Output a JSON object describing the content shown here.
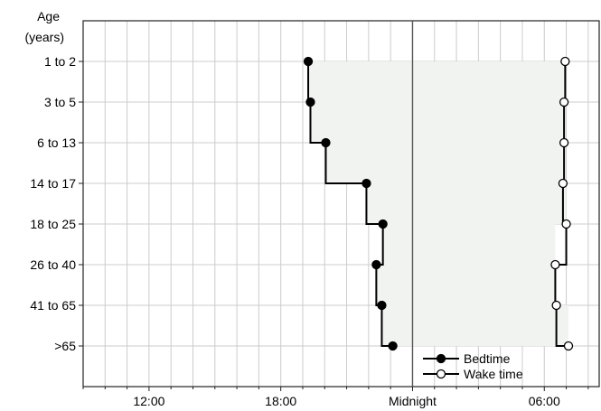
{
  "chart_data": {
    "type": "line",
    "title": "",
    "xlabel": "",
    "ylabel_lines": [
      "Age",
      "(years)"
    ],
    "categories": [
      "1 to 2",
      "3 to 5",
      "6 to 13",
      "14 to 17",
      "18 to 25",
      "26 to 40",
      "41 to 65",
      ">65"
    ],
    "x_unit": "hours since 09:00",
    "xlim": [
      0,
      23.5
    ],
    "x_ticks": [
      {
        "value": 3,
        "label": "12:00"
      },
      {
        "value": 9,
        "label": "18:00"
      },
      {
        "value": 15,
        "label": "Midnight"
      },
      {
        "value": 21,
        "label": "06:00"
      }
    ],
    "x_minor_step": 1,
    "midnight_line": 15,
    "series": [
      {
        "name": "Bedtime",
        "marker": "filled",
        "values": [
          10.25,
          10.35,
          11.05,
          12.9,
          13.65,
          13.35,
          13.6,
          14.1
        ]
      },
      {
        "name": "Wake time",
        "marker": "open",
        "values": [
          21.95,
          21.9,
          21.9,
          21.85,
          22.0,
          21.5,
          21.55,
          22.1
        ]
      }
    ],
    "legend_position": "bottom-right",
    "colors": {
      "line": "#000000",
      "shade": "#f1f3f1",
      "grid": "#cccccc",
      "axis": "#222222"
    }
  }
}
